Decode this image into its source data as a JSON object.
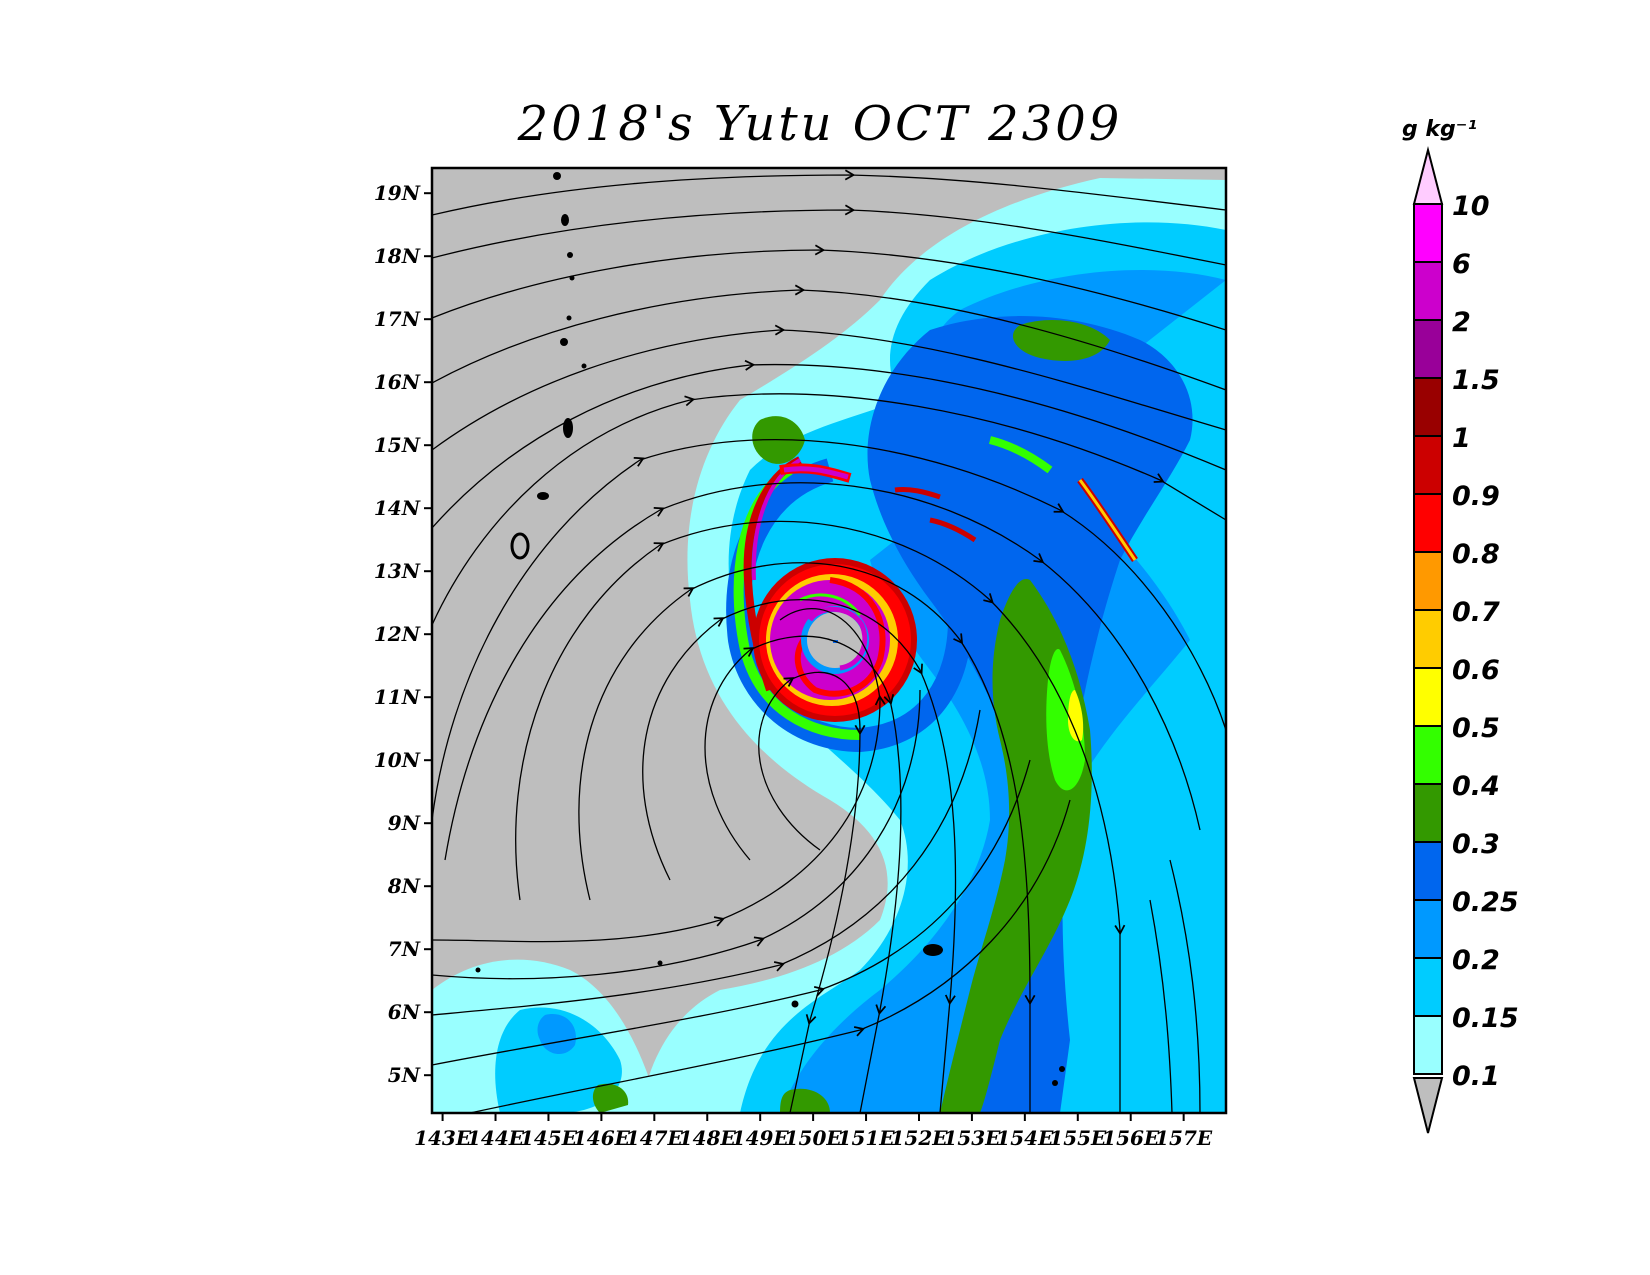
{
  "title": "2018's Yutu OCT 2309",
  "map": {
    "lat_labels": [
      "19N",
      "18N",
      "17N",
      "16N",
      "15N",
      "14N",
      "13N",
      "12N",
      "11N",
      "10N",
      "9N",
      "8N",
      "7N",
      "6N",
      "5N"
    ],
    "lat_values": [
      19,
      18,
      17,
      16,
      15,
      14,
      13,
      12,
      11,
      10,
      9,
      8,
      7,
      6,
      5
    ],
    "lon_labels": [
      "143E",
      "144E",
      "145E",
      "146E",
      "147E",
      "148E",
      "149E",
      "150E",
      "151E",
      "152E",
      "153E",
      "154E",
      "155E",
      "156E",
      "157E"
    ],
    "lon_values": [
      143,
      144,
      145,
      146,
      147,
      148,
      149,
      150,
      151,
      152,
      153,
      154,
      155,
      156,
      157
    ],
    "lon_range": [
      142.8,
      157.8
    ],
    "lat_range": [
      4.4,
      19.4
    ],
    "background_color": "#bebebe",
    "storm_center": {
      "lon": 150.9,
      "lat": 11.9
    }
  },
  "colorbar": {
    "unit": "g  kg⁻¹",
    "labels": [
      "10",
      "6",
      "2",
      "1.5",
      "1",
      "0.9",
      "0.8",
      "0.7",
      "0.6",
      "0.5",
      "0.4",
      "0.3",
      "0.25",
      "0.2",
      "0.15",
      "0.1"
    ],
    "colors": [
      "#ff00ff",
      "#cc00cc",
      "#990099",
      "#990000",
      "#cc0000",
      "#ff0000",
      "#ff9900",
      "#ffcc00",
      "#ffff00",
      "#33ff00",
      "#339900",
      "#0066ee",
      "#0099ff",
      "#00ccff",
      "#99ffff"
    ],
    "over_color": "#ffccff",
    "under_color": "#bebebe"
  }
}
